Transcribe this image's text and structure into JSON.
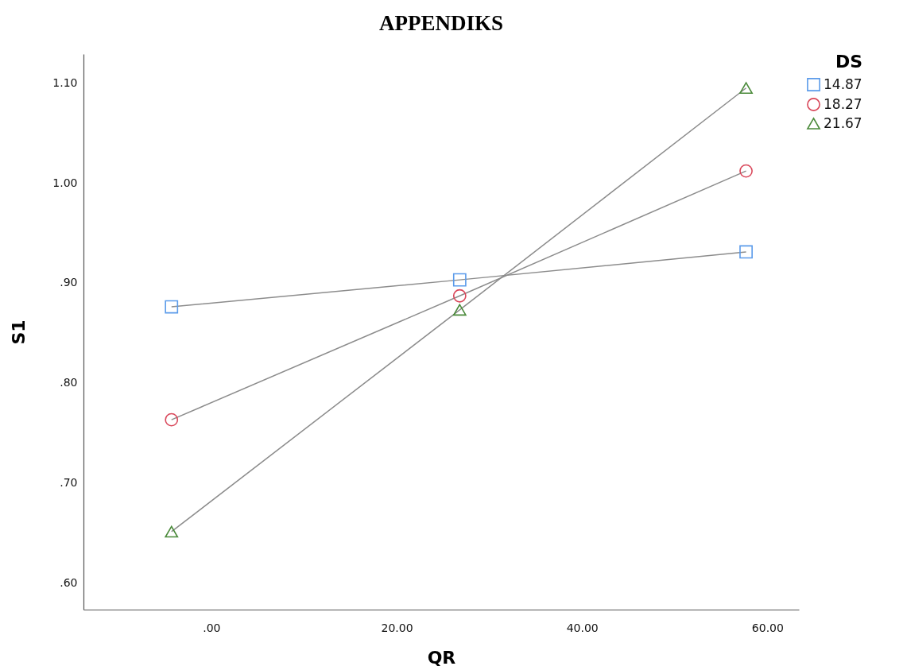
{
  "chart_data": {
    "type": "line",
    "title": "APPENDIKS",
    "xlabel": "QR",
    "ylabel": "S1",
    "legend_title": "DS",
    "legend": "top right",
    "grid": false,
    "line_style": "solid",
    "x": [
      -4.3,
      26.8,
      57.7
    ],
    "series": [
      {
        "name": "14.87",
        "color": "#5b9bea",
        "marker": "square",
        "values": [
          0.876,
          0.903,
          0.931
        ]
      },
      {
        "name": "18.27",
        "color": "#d9475a",
        "marker": "circle",
        "values": [
          0.763,
          0.887,
          1.012
        ]
      },
      {
        "name": "21.67",
        "color": "#4a8a3a",
        "marker": "triangle",
        "values": [
          0.651,
          0.873,
          1.095
        ]
      }
    ],
    "xlim": [
      -13.8,
      63.4
    ],
    "ylim": [
      0.573,
      1.129
    ],
    "xticks": [
      {
        "value": 0,
        "label": ".00"
      },
      {
        "value": 20,
        "label": "20.00"
      },
      {
        "value": 40,
        "label": "40.00"
      },
      {
        "value": 60,
        "label": "60.00"
      }
    ],
    "yticks": [
      {
        "value": 0.6,
        "label": ".60"
      },
      {
        "value": 0.7,
        "label": ".70"
      },
      {
        "value": 0.8,
        "label": ".80"
      },
      {
        "value": 0.9,
        "label": ".90"
      },
      {
        "value": 1.0,
        "label": "1.00"
      },
      {
        "value": 1.1,
        "label": "1.10"
      }
    ]
  }
}
